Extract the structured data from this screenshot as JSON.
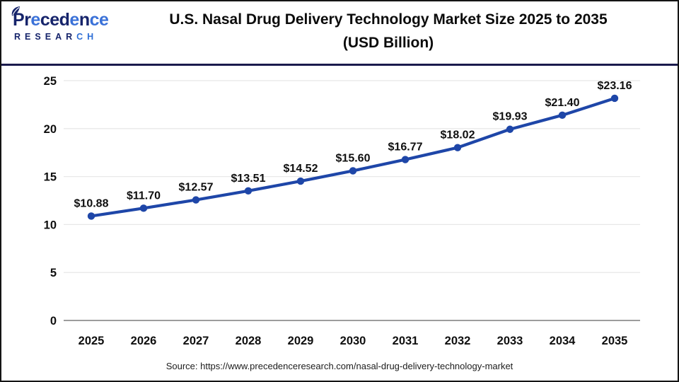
{
  "header": {
    "logo": {
      "line1": "Precedence",
      "line1_colors": [
        "#16246b",
        "#16246b",
        "#3a71d8",
        "#16246b",
        "#16246b",
        "#16246b",
        "#3a71d8",
        "#16246b",
        "#3a71d8",
        "#3a71d8"
      ],
      "line2": "RESEARCH",
      "line2_colors": [
        "#16246b",
        "#16246b",
        "#16246b",
        "#16246b",
        "#16246b",
        "#16246b",
        "#2f6fd6",
        "#2f6fd6"
      ]
    },
    "title_line1": "U.S. Nasal Drug Delivery Technology Market Size 2025 to 2035",
    "title_line2": "(USD Billion)"
  },
  "chart_data": {
    "type": "line",
    "title": "U.S. Nasal Drug Delivery Technology Market Size 2025 to 2035 (USD Billion)",
    "categories": [
      "2025",
      "2026",
      "2027",
      "2028",
      "2029",
      "2030",
      "2031",
      "2032",
      "2033",
      "2034",
      "2035"
    ],
    "values": [
      10.88,
      11.7,
      12.57,
      13.51,
      14.52,
      15.6,
      16.77,
      18.02,
      19.93,
      21.4,
      23.16
    ],
    "value_labels": [
      "$10.88",
      "$11.70",
      "$12.57",
      "$13.51",
      "$14.52",
      "$15.60",
      "$16.77",
      "$18.02",
      "$19.93",
      "$21.40",
      "$23.16"
    ],
    "xlabel": "",
    "ylabel": "",
    "ylim": [
      0,
      25
    ],
    "yticks": [
      0,
      5,
      10,
      15,
      20,
      25
    ],
    "grid": true,
    "legend": "none",
    "line_color": "#1e46a8",
    "marker": "circle",
    "value_prefix": "$"
  },
  "footer": {
    "source": "Source: https://www.precedenceresearch.com/nasal-drug-delivery-technology-market"
  },
  "colors": {
    "line": "#1e46a8",
    "header_divider": "#1a1a4d",
    "outer_border": "#141414",
    "gridline": "#e8e8e8",
    "axis_line": "#9c9c9c",
    "label_text": "#0f0f0f",
    "logo_navy": "#16246b",
    "logo_blue": "#2f6fd6"
  }
}
